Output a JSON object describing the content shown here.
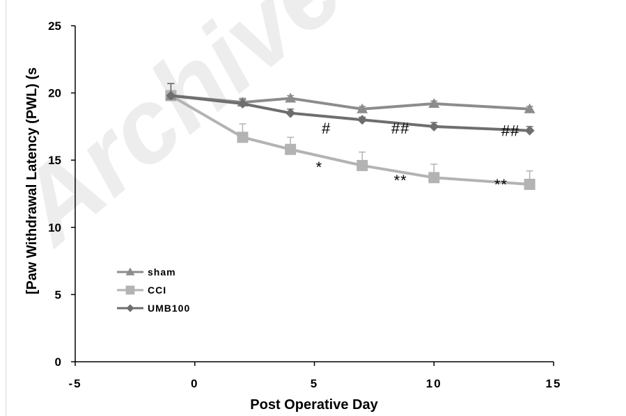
{
  "chart_data": {
    "type": "line",
    "title": "",
    "xlabel": "Post Operative Day",
    "ylabel": "[Paw Withdrawal Latency (PWL) (s",
    "xlim": [
      -5,
      15
    ],
    "ylim": [
      0,
      25
    ],
    "xticks": [
      "-5",
      "0",
      "5",
      "10",
      "15"
    ],
    "yticks": [
      "0",
      "5",
      "10",
      "15",
      "20",
      "25"
    ],
    "grid": false,
    "legend_position": "lower-left",
    "watermark": "Archive",
    "series": [
      {
        "name": "sham",
        "marker": "triangle",
        "color": "#8c8c8c",
        "x": [
          -1,
          2,
          4,
          7,
          10,
          14
        ],
        "y": [
          19.8,
          19.3,
          19.6,
          18.8,
          19.2,
          18.8
        ],
        "err": [
          0.9,
          0.3,
          0.2,
          0.2,
          0.2,
          0.2
        ]
      },
      {
        "name": "CCI",
        "marker": "square",
        "color": "#b3b3b3",
        "x": [
          -1,
          2,
          4,
          7,
          10,
          14
        ],
        "y": [
          19.8,
          16.7,
          15.8,
          14.6,
          13.7,
          13.2
        ],
        "err": [
          0.9,
          1.0,
          0.9,
          1.0,
          1.0,
          1.0
        ]
      },
      {
        "name": "UMB100",
        "marker": "diamond",
        "color": "#6e6e6e",
        "x": [
          -1,
          2,
          4,
          7,
          10,
          14
        ],
        "y": [
          19.8,
          19.2,
          18.5,
          18.0,
          17.5,
          17.2
        ],
        "err": [
          0.9,
          0.3,
          0.3,
          0.2,
          0.3,
          0.3
        ]
      }
    ],
    "annotations": [
      {
        "text": "#",
        "x": 5.5,
        "y": 17.4
      },
      {
        "text": "##",
        "x": 8.6,
        "y": 17.4
      },
      {
        "text": "##",
        "x": 13.2,
        "y": 17.2
      },
      {
        "text": "*",
        "x": 5.2,
        "y": 14.5
      },
      {
        "text": "**",
        "x": 8.6,
        "y": 13.5
      },
      {
        "text": "**",
        "x": 12.8,
        "y": 13.2
      }
    ]
  }
}
